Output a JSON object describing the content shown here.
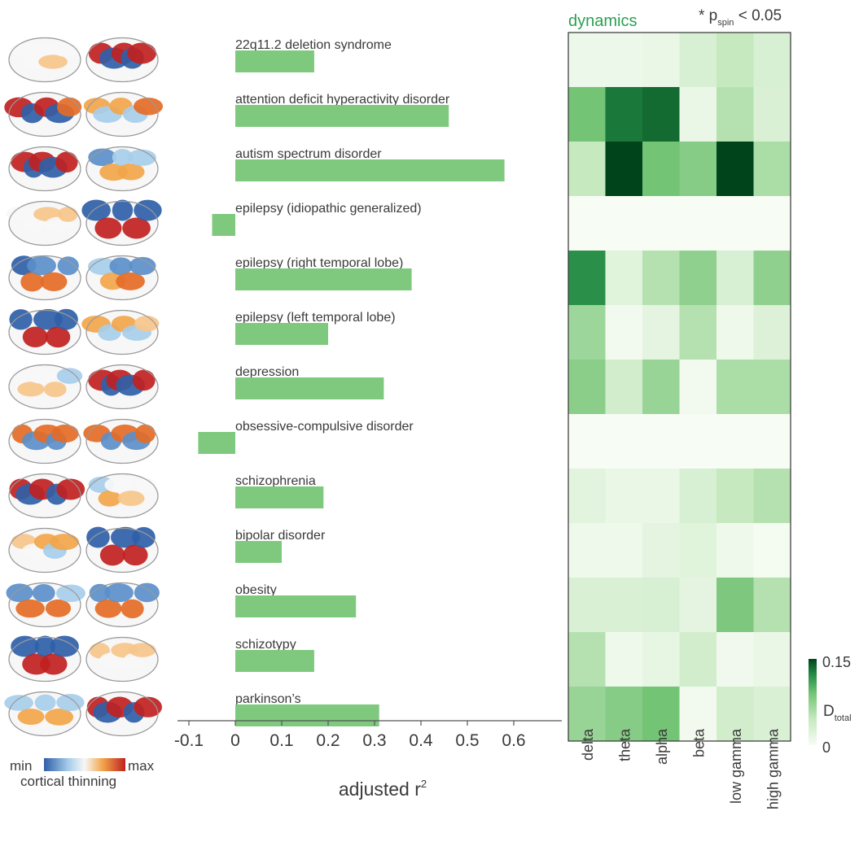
{
  "colors": {
    "bar": "#7fc97f",
    "brain_low": "#2f5fa8",
    "brain_mid": "#f7f7f7",
    "brain_high": "#c0211f",
    "heat_low": "#f7fcf5",
    "heat_high": "#00441b",
    "title_green": "#2aa052"
  },
  "brains": {
    "legend_min": "min",
    "legend_max": "max",
    "legend_title": "cortical thinning"
  },
  "chart_data": [
    {
      "type": "bar",
      "orientation": "horizontal",
      "categories": [
        "22q11.2 deletion syndrome",
        "attention deficit hyperactivity disorder",
        "autism spectrum disorder",
        "epilepsy (idiopathic generalized)",
        "epilepsy (right temporal lobe)",
        "epilepsy (left temporal lobe)",
        "depression",
        "obsessive-compulsive disorder",
        "schizophrenia",
        "bipolar disorder",
        "obesity",
        "schizotypy",
        "parkinson’s"
      ],
      "values": [
        0.17,
        0.46,
        0.58,
        -0.05,
        0.38,
        0.2,
        0.32,
        -0.08,
        0.19,
        0.1,
        0.26,
        0.17,
        0.31
      ],
      "xlabel": "adjusted r",
      "xlabel_superscript": "2",
      "xlim": [
        -0.1,
        0.6
      ],
      "xticks": [
        "-0.1",
        "0",
        "0.1",
        "0.2",
        "0.3",
        "0.4",
        "0.5",
        "0.6"
      ]
    },
    {
      "type": "heatmap",
      "title": "dynamics",
      "annotation": {
        "prefix": "* p",
        "subscript": "spin",
        "suffix": " < 0.05"
      },
      "columns": [
        "delta",
        "theta",
        "alpha",
        "beta",
        "low gamma",
        "high gamma"
      ],
      "rows": [
        "22q11.2 deletion syndrome",
        "attention deficit hyperactivity disorder",
        "autism spectrum disorder",
        "epilepsy (idiopathic generalized)",
        "epilepsy (right temporal lobe)",
        "epilepsy (left temporal lobe)",
        "depression",
        "obsessive-compulsive disorder",
        "schizophrenia",
        "bipolar disorder",
        "obesity",
        "schizotypy",
        "parkinson’s"
      ],
      "values": [
        [
          0.01,
          0.01,
          0.012,
          0.03,
          0.045,
          0.03
        ],
        [
          0.09,
          0.13,
          0.135,
          0.012,
          0.055,
          0.028
        ],
        [
          0.045,
          0.15,
          0.09,
          0.08,
          0.15,
          0.06
        ],
        [
          0.0,
          0.0,
          0.0,
          0.0,
          0.0,
          0.0
        ],
        [
          0.12,
          0.022,
          0.055,
          0.075,
          0.03,
          0.075
        ],
        [
          0.068,
          0.005,
          0.018,
          0.055,
          0.008,
          0.025
        ],
        [
          0.078,
          0.035,
          0.07,
          0.005,
          0.06,
          0.06
        ],
        [
          0.0,
          0.0,
          0.0,
          0.0,
          0.0,
          0.0
        ],
        [
          0.02,
          0.012,
          0.012,
          0.03,
          0.045,
          0.055
        ],
        [
          0.008,
          0.008,
          0.018,
          0.022,
          0.008,
          0.003
        ],
        [
          0.028,
          0.028,
          0.03,
          0.018,
          0.085,
          0.055
        ],
        [
          0.055,
          0.008,
          0.015,
          0.035,
          0.006,
          0.012
        ],
        [
          0.07,
          0.08,
          0.09,
          0.005,
          0.035,
          0.028
        ]
      ],
      "colorbar": {
        "max_label": "0.15",
        "min_label": "0",
        "label": "D",
        "label_subscript": "total",
        "vmin": 0,
        "vmax": 0.15
      }
    }
  ]
}
